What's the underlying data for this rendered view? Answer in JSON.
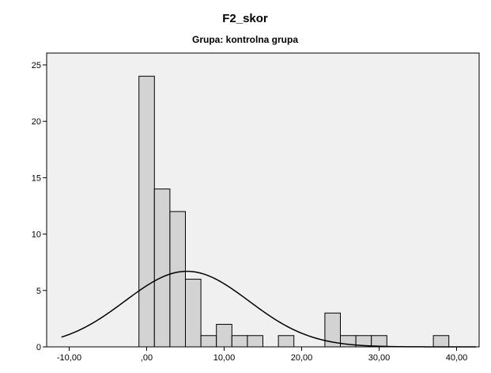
{
  "chart_data": {
    "type": "bar",
    "title": "F2_skor",
    "subtitle": "Grupa: kontrolna grupa",
    "xlabel": "",
    "ylabel": "",
    "xlim": [
      -10,
      40
    ],
    "ylim": [
      0,
      25
    ],
    "x_ticks": [
      -10,
      0,
      10,
      20,
      30,
      40
    ],
    "x_tick_labels": [
      "-10,00",
      ",00",
      "10,00",
      "20,00",
      "30,00",
      "40,00"
    ],
    "y_ticks": [
      0,
      5,
      10,
      15,
      20,
      25
    ],
    "y_tick_labels": [
      "0",
      "5",
      "10",
      "15",
      "20",
      "25"
    ],
    "bin_width": 2,
    "bins": [
      {
        "x0": -1,
        "x1": 1,
        "count": 24
      },
      {
        "x0": 1,
        "x1": 3,
        "count": 14
      },
      {
        "x0": 3,
        "x1": 5,
        "count": 12
      },
      {
        "x0": 5,
        "x1": 7,
        "count": 6
      },
      {
        "x0": 7,
        "x1": 9,
        "count": 1
      },
      {
        "x0": 9,
        "x1": 11,
        "count": 2
      },
      {
        "x0": 11,
        "x1": 13,
        "count": 1
      },
      {
        "x0": 13,
        "x1": 15,
        "count": 1
      },
      {
        "x0": 17,
        "x1": 19,
        "count": 1
      },
      {
        "x0": 23,
        "x1": 25,
        "count": 3
      },
      {
        "x0": 25,
        "x1": 27,
        "count": 1
      },
      {
        "x0": 27,
        "x1": 29,
        "count": 1
      },
      {
        "x0": 29,
        "x1": 31,
        "count": 1
      },
      {
        "x0": 37,
        "x1": 39,
        "count": 1
      }
    ],
    "normal_curve": {
      "mean": 5.2,
      "sd": 8.0,
      "peak_count": 6.7
    },
    "grid": false,
    "colors": {
      "plot_background": "#f0f0f0",
      "bar_fill": "#d3d3d3",
      "bar_stroke": "#000000",
      "curve": "#000000"
    }
  }
}
